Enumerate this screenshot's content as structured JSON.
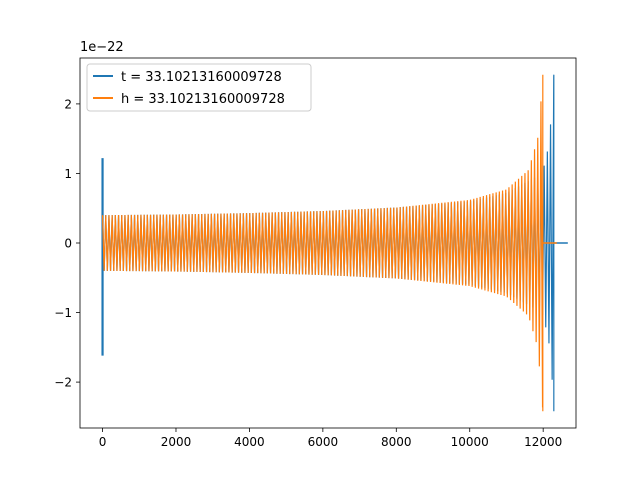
{
  "chart_data": {
    "type": "line",
    "y_offset_label": "1e−22",
    "xlim": [
      -614,
      12894
    ],
    "ylim": [
      -2.66,
      2.66
    ],
    "x_ticks": [
      {
        "value": 0,
        "label": "0"
      },
      {
        "value": 2000,
        "label": "2000"
      },
      {
        "value": 4000,
        "label": "4000"
      },
      {
        "value": 6000,
        "label": "6000"
      },
      {
        "value": 8000,
        "label": "8000"
      },
      {
        "value": 10000,
        "label": "10000"
      },
      {
        "value": 12000,
        "label": "12000"
      }
    ],
    "y_ticks": [
      {
        "value": -2,
        "label": "−2"
      },
      {
        "value": -1,
        "label": "−1"
      },
      {
        "value": 0,
        "label": "0"
      },
      {
        "value": 1,
        "label": "1"
      },
      {
        "value": 2,
        "label": "2"
      }
    ],
    "legend_position": "upper-left",
    "grid": false,
    "series": [
      {
        "name": "t = 33.10213160009728",
        "color": "#1f77b4",
        "envelope": [
          {
            "x": 0,
            "amp": 0.4
          },
          {
            "x": 2000,
            "amp": 0.41
          },
          {
            "x": 4000,
            "amp": 0.43
          },
          {
            "x": 6000,
            "amp": 0.46
          },
          {
            "x": 8000,
            "amp": 0.51
          },
          {
            "x": 10000,
            "amp": 0.6
          },
          {
            "x": 11000,
            "amp": 0.72
          },
          {
            "x": 11800,
            "amp": 0.95
          },
          {
            "x": 12000,
            "amp": 1.05
          },
          {
            "x": 12150,
            "amp": 1.4
          },
          {
            "x": 12250,
            "amp": 2.0
          },
          {
            "x": 12290,
            "amp": 2.42
          }
        ],
        "spikes": [
          {
            "x": 0,
            "ymin": -1.62,
            "ymax": 1.22
          }
        ]
      },
      {
        "name": "h = 33.10213160009728",
        "color": "#ff7f0e",
        "envelope": [
          {
            "x": 0,
            "amp": 0.4
          },
          {
            "x": 2000,
            "amp": 0.41
          },
          {
            "x": 4000,
            "amp": 0.43
          },
          {
            "x": 6000,
            "amp": 0.46
          },
          {
            "x": 8000,
            "amp": 0.51
          },
          {
            "x": 10000,
            "amp": 0.62
          },
          {
            "x": 11000,
            "amp": 0.77
          },
          {
            "x": 11600,
            "amp": 1.05
          },
          {
            "x": 11850,
            "amp": 1.5
          },
          {
            "x": 11950,
            "amp": 2.1
          },
          {
            "x": 11990,
            "amp": 2.42
          }
        ],
        "spikes": []
      }
    ]
  }
}
